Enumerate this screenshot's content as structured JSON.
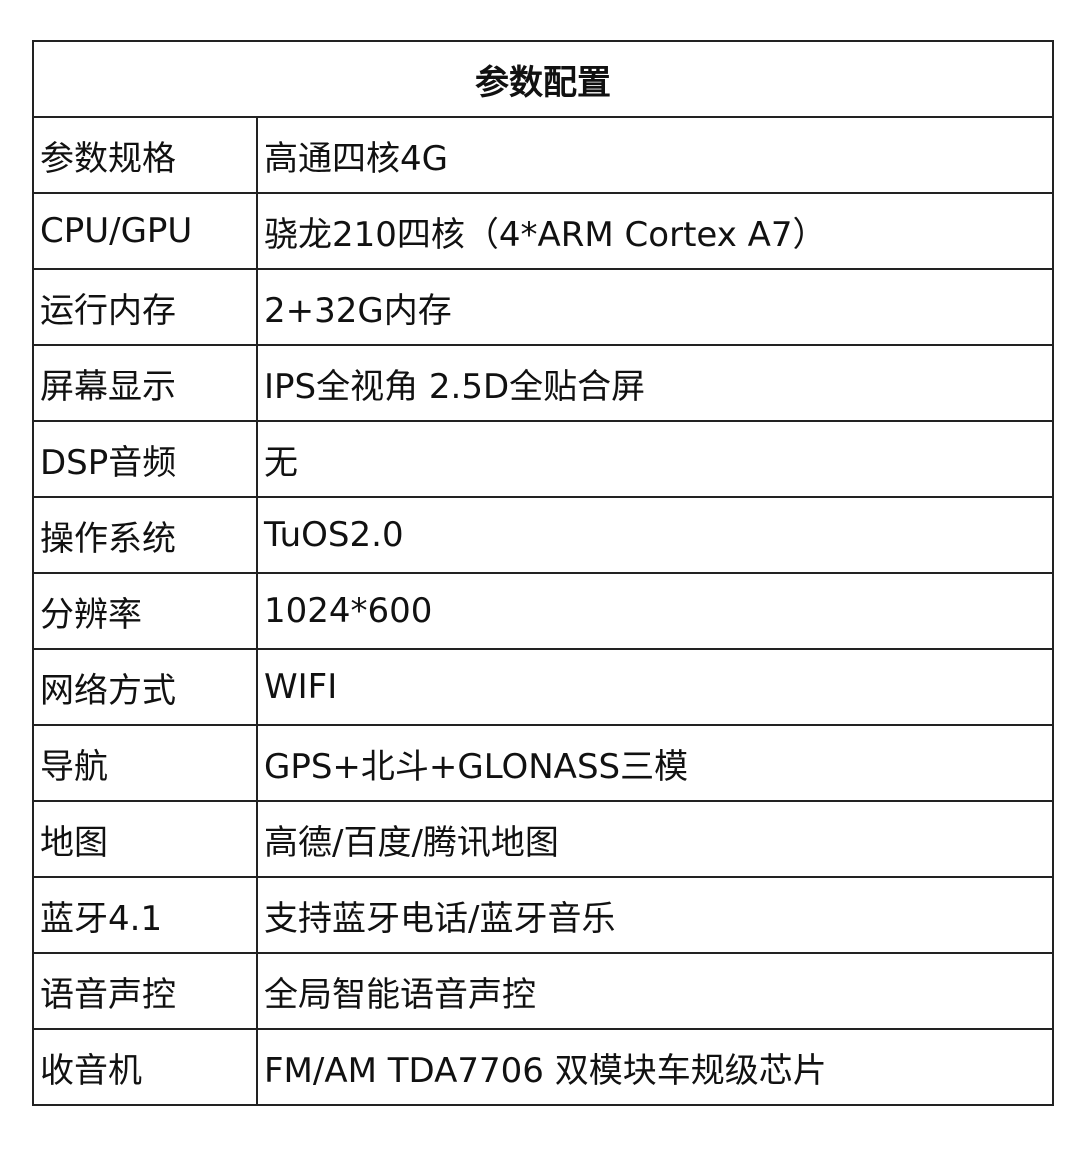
{
  "title": "参数配置",
  "rows": [
    {
      "label": "参数规格",
      "value": "高通四核4G"
    },
    {
      "label": "CPU/GPU",
      "value": "骁龙210四核（4*ARM Cortex A7）"
    },
    {
      "label": "运行内存",
      "value": "2+32G内存"
    },
    {
      "label": "屏幕显示",
      "value": "IPS全视角 2.5D全贴合屏"
    },
    {
      "label": "DSP音频",
      "value": "无"
    },
    {
      "label": "操作系统",
      "value": "TuOS2.0"
    },
    {
      "label": "分辨率",
      "value": "1024*600"
    },
    {
      "label": "网络方式",
      "value": "WIFI"
    },
    {
      "label": "导航",
      "value": "GPS+北斗+GLONASS三模"
    },
    {
      "label": "地图",
      "value": "高德/百度/腾讯地图"
    },
    {
      "label": "蓝牙4.1",
      "value": "支持蓝牙电话/蓝牙音乐"
    },
    {
      "label": "语音声控",
      "value": "全局智能语音声控"
    },
    {
      "label": "收音机",
      "value": "FM/AM TDA7706 双模块车规级芯片"
    }
  ]
}
